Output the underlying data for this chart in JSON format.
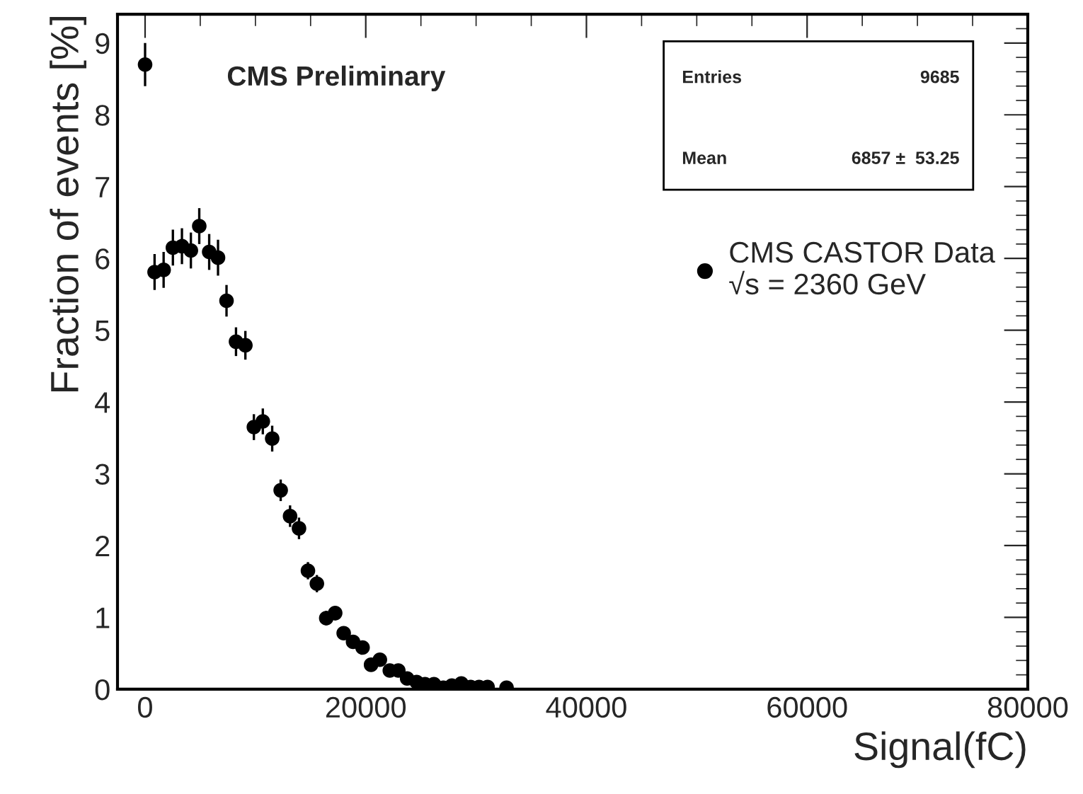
{
  "chart_data": {
    "type": "scatter",
    "xlabel": "Signal(fC)",
    "ylabel": "Fraction of events [%]",
    "annotations": [
      "CMS Preliminary",
      "Entries",
      "9685",
      "Mean",
      "6857 ±  53.25"
    ],
    "xlim": [
      -2500,
      80000
    ],
    "xticks": [
      0,
      20000,
      40000,
      60000,
      80000
    ],
    "ylim": [
      0,
      9.4
    ],
    "yticks": [
      0,
      1,
      2,
      3,
      4,
      5,
      6,
      7,
      8,
      9
    ],
    "grid": false,
    "legend": "right",
    "marker": "circle",
    "series": [
      {
        "name": "CMS CASTOR Data\n√s = 2360 GeV",
        "color": "#000000",
        "x": [
          0,
          860,
          1680,
          2520,
          3340,
          4150,
          4910,
          5810,
          6610,
          7380,
          8240,
          9090,
          9860,
          10670,
          11520,
          12290,
          13140,
          13950,
          14760,
          15570,
          16420,
          17230,
          18000,
          18850,
          19710,
          20480,
          21280,
          22180,
          22950,
          23750,
          24610,
          25370,
          26180,
          27030,
          27800,
          28660,
          29510,
          30270,
          31040,
          32760
        ],
        "values": [
          8.7,
          5.81,
          5.84,
          6.15,
          6.17,
          6.11,
          6.45,
          6.09,
          6.01,
          5.41,
          4.84,
          4.79,
          3.65,
          3.73,
          3.49,
          2.77,
          2.41,
          2.24,
          1.65,
          1.47,
          0.99,
          1.06,
          0.78,
          0.66,
          0.58,
          0.34,
          0.41,
          0.26,
          0.26,
          0.15,
          0.1,
          0.07,
          0.07,
          0.02,
          0.05,
          0.08,
          0.03,
          0.03,
          0.03,
          0.02
        ],
        "errors": [
          0.3,
          0.25,
          0.25,
          0.25,
          0.25,
          0.25,
          0.25,
          0.25,
          0.25,
          0.22,
          0.2,
          0.2,
          0.18,
          0.18,
          0.18,
          0.15,
          0.15,
          0.15,
          0.12,
          0.12,
          0.1,
          0.1,
          null,
          null,
          null,
          null,
          null,
          null,
          null,
          null,
          null,
          null,
          null,
          null,
          null,
          null,
          null,
          null,
          null,
          null
        ]
      }
    ]
  }
}
